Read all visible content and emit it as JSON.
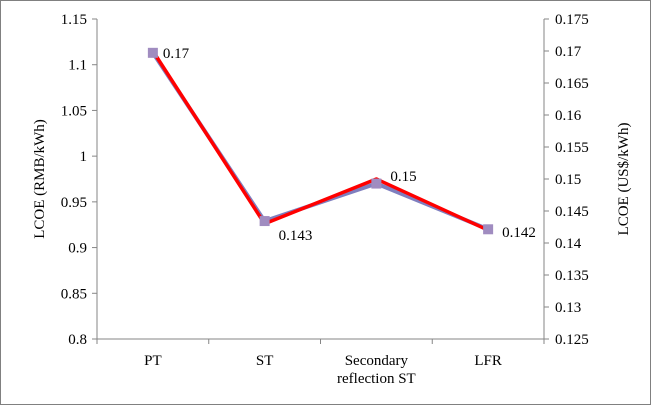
{
  "chart_data": {
    "type": "line",
    "categories": [
      "PT",
      "ST",
      "Secondary\nreflection ST",
      "LFR"
    ],
    "ylabel": "LCOE (RMB/kWh)",
    "y2label": "LCOE (US$/kWh)",
    "ylim": [
      0.8,
      1.15
    ],
    "y2lim": [
      0.125,
      0.175
    ],
    "yticks": [
      "0.8",
      "0.85",
      "0.9",
      "0.95",
      "1",
      "1.05",
      "1.1",
      "1.15"
    ],
    "y2ticks": [
      "0.125",
      "0.13",
      "0.135",
      "0.14",
      "0.145",
      "0.15",
      "0.155",
      "0.16",
      "0.165",
      "0.17",
      "0.175"
    ],
    "grid": false,
    "legend": "none",
    "series": [
      {
        "axis": "left",
        "color": "#7f7fbf",
        "marker": "square",
        "marker_color": "#a08cc0",
        "values": [
          1.113,
          0.929,
          0.97,
          0.92
        ]
      },
      {
        "axis": "right",
        "color": "#ff0000",
        "values": [
          0.17,
          0.143,
          0.15,
          0.142
        ],
        "data_labels": [
          "0.17",
          "0.143",
          "0.15",
          "0.142"
        ]
      }
    ]
  }
}
